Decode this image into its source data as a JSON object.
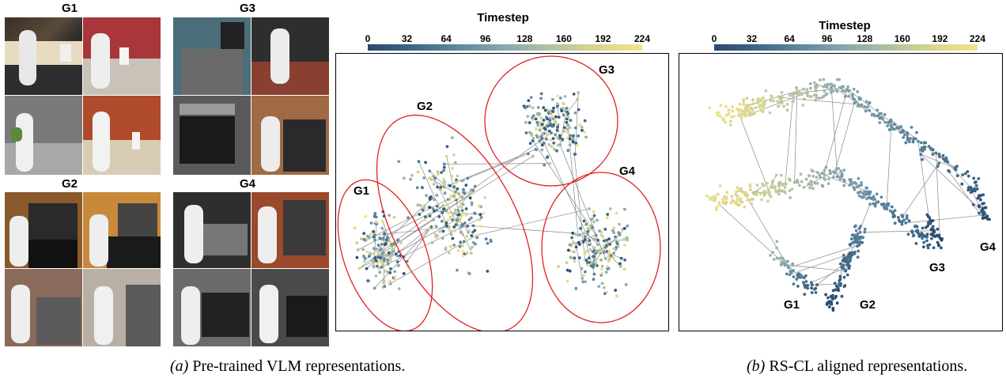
{
  "image_groups": [
    {
      "label": "G1"
    },
    {
      "label": "G3"
    },
    {
      "label": "G2"
    },
    {
      "label": "G4"
    }
  ],
  "colorbar": {
    "title": "Timestep",
    "ticks": [
      "0",
      "32",
      "64",
      "96",
      "128",
      "160",
      "192",
      "224"
    ],
    "colors": [
      "#2b4a6f",
      "#3d6787",
      "#5f8aa0",
      "#86a9ae",
      "#b2c2a1",
      "#d9d58e",
      "#f4e48a"
    ]
  },
  "panel_a": {
    "caption_label": "(a)",
    "caption_text": " Pre-trained VLM representations.",
    "group_labels": [
      "G1",
      "G2",
      "G3",
      "G4"
    ],
    "ellipse_color": "#e02020"
  },
  "panel_b": {
    "caption_label": "(b)",
    "caption_text": " RS-CL aligned representations.",
    "group_labels": [
      "G1",
      "G2",
      "G3",
      "G4"
    ]
  },
  "chart_data": [
    {
      "type": "scatter",
      "title": "",
      "xlabel": "",
      "ylabel": "",
      "colorbar_label": "Timestep",
      "colorbar_range": [
        0,
        224
      ],
      "clusters": [
        {
          "name": "G1"
        },
        {
          "name": "G2"
        },
        {
          "name": "G3"
        },
        {
          "name": "G4"
        }
      ]
    },
    {
      "type": "scatter",
      "title": "",
      "xlabel": "",
      "ylabel": "",
      "colorbar_label": "Timestep",
      "colorbar_range": [
        0,
        224
      ],
      "clusters": [
        {
          "name": "G1"
        },
        {
          "name": "G2"
        },
        {
          "name": "G3"
        },
        {
          "name": "G4"
        }
      ]
    }
  ]
}
